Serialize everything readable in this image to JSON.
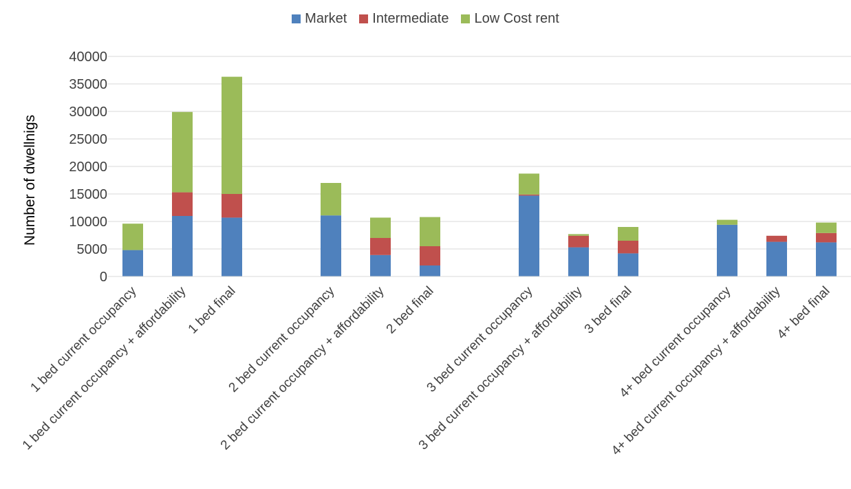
{
  "chart_data": {
    "type": "bar",
    "stacked": true,
    "title": "",
    "xlabel": "",
    "ylabel": "Number of dwellnigs",
    "ylim": [
      0,
      40000
    ],
    "yticks": [
      0,
      5000,
      10000,
      15000,
      20000,
      25000,
      30000,
      35000,
      40000
    ],
    "grid": true,
    "legend_position": "top-center",
    "categories": [
      "1 bed current occupancy",
      "1 bed current occupancy + affordability",
      "1 bed final",
      "",
      "2 bed current occupancy",
      "2 bed current occupancy + affordability",
      "2 bed final",
      "",
      "3 bed current occupancy",
      "3 bed current occupancy + affordability",
      "3 bed final",
      "",
      "4+ bed current occupancy",
      "4+ bed current occupancy + affordability",
      "4+ bed final"
    ],
    "series": [
      {
        "name": "Market",
        "color": "#4F81BD",
        "values": [
          4800,
          11000,
          10700,
          null,
          11100,
          3900,
          2000,
          null,
          14700,
          5300,
          4200,
          null,
          9400,
          6300,
          6200
        ]
      },
      {
        "name": "Intermediate",
        "color": "#C0504D",
        "values": [
          0,
          4300,
          4300,
          null,
          0,
          3100,
          3500,
          null,
          200,
          2100,
          2300,
          null,
          0,
          1100,
          1700
        ]
      },
      {
        "name": "Low Cost rent",
        "color": "#9BBB59",
        "values": [
          4800,
          14600,
          21300,
          null,
          5900,
          3700,
          5300,
          null,
          3800,
          300,
          2500,
          null,
          900,
          0,
          1900
        ]
      }
    ]
  }
}
